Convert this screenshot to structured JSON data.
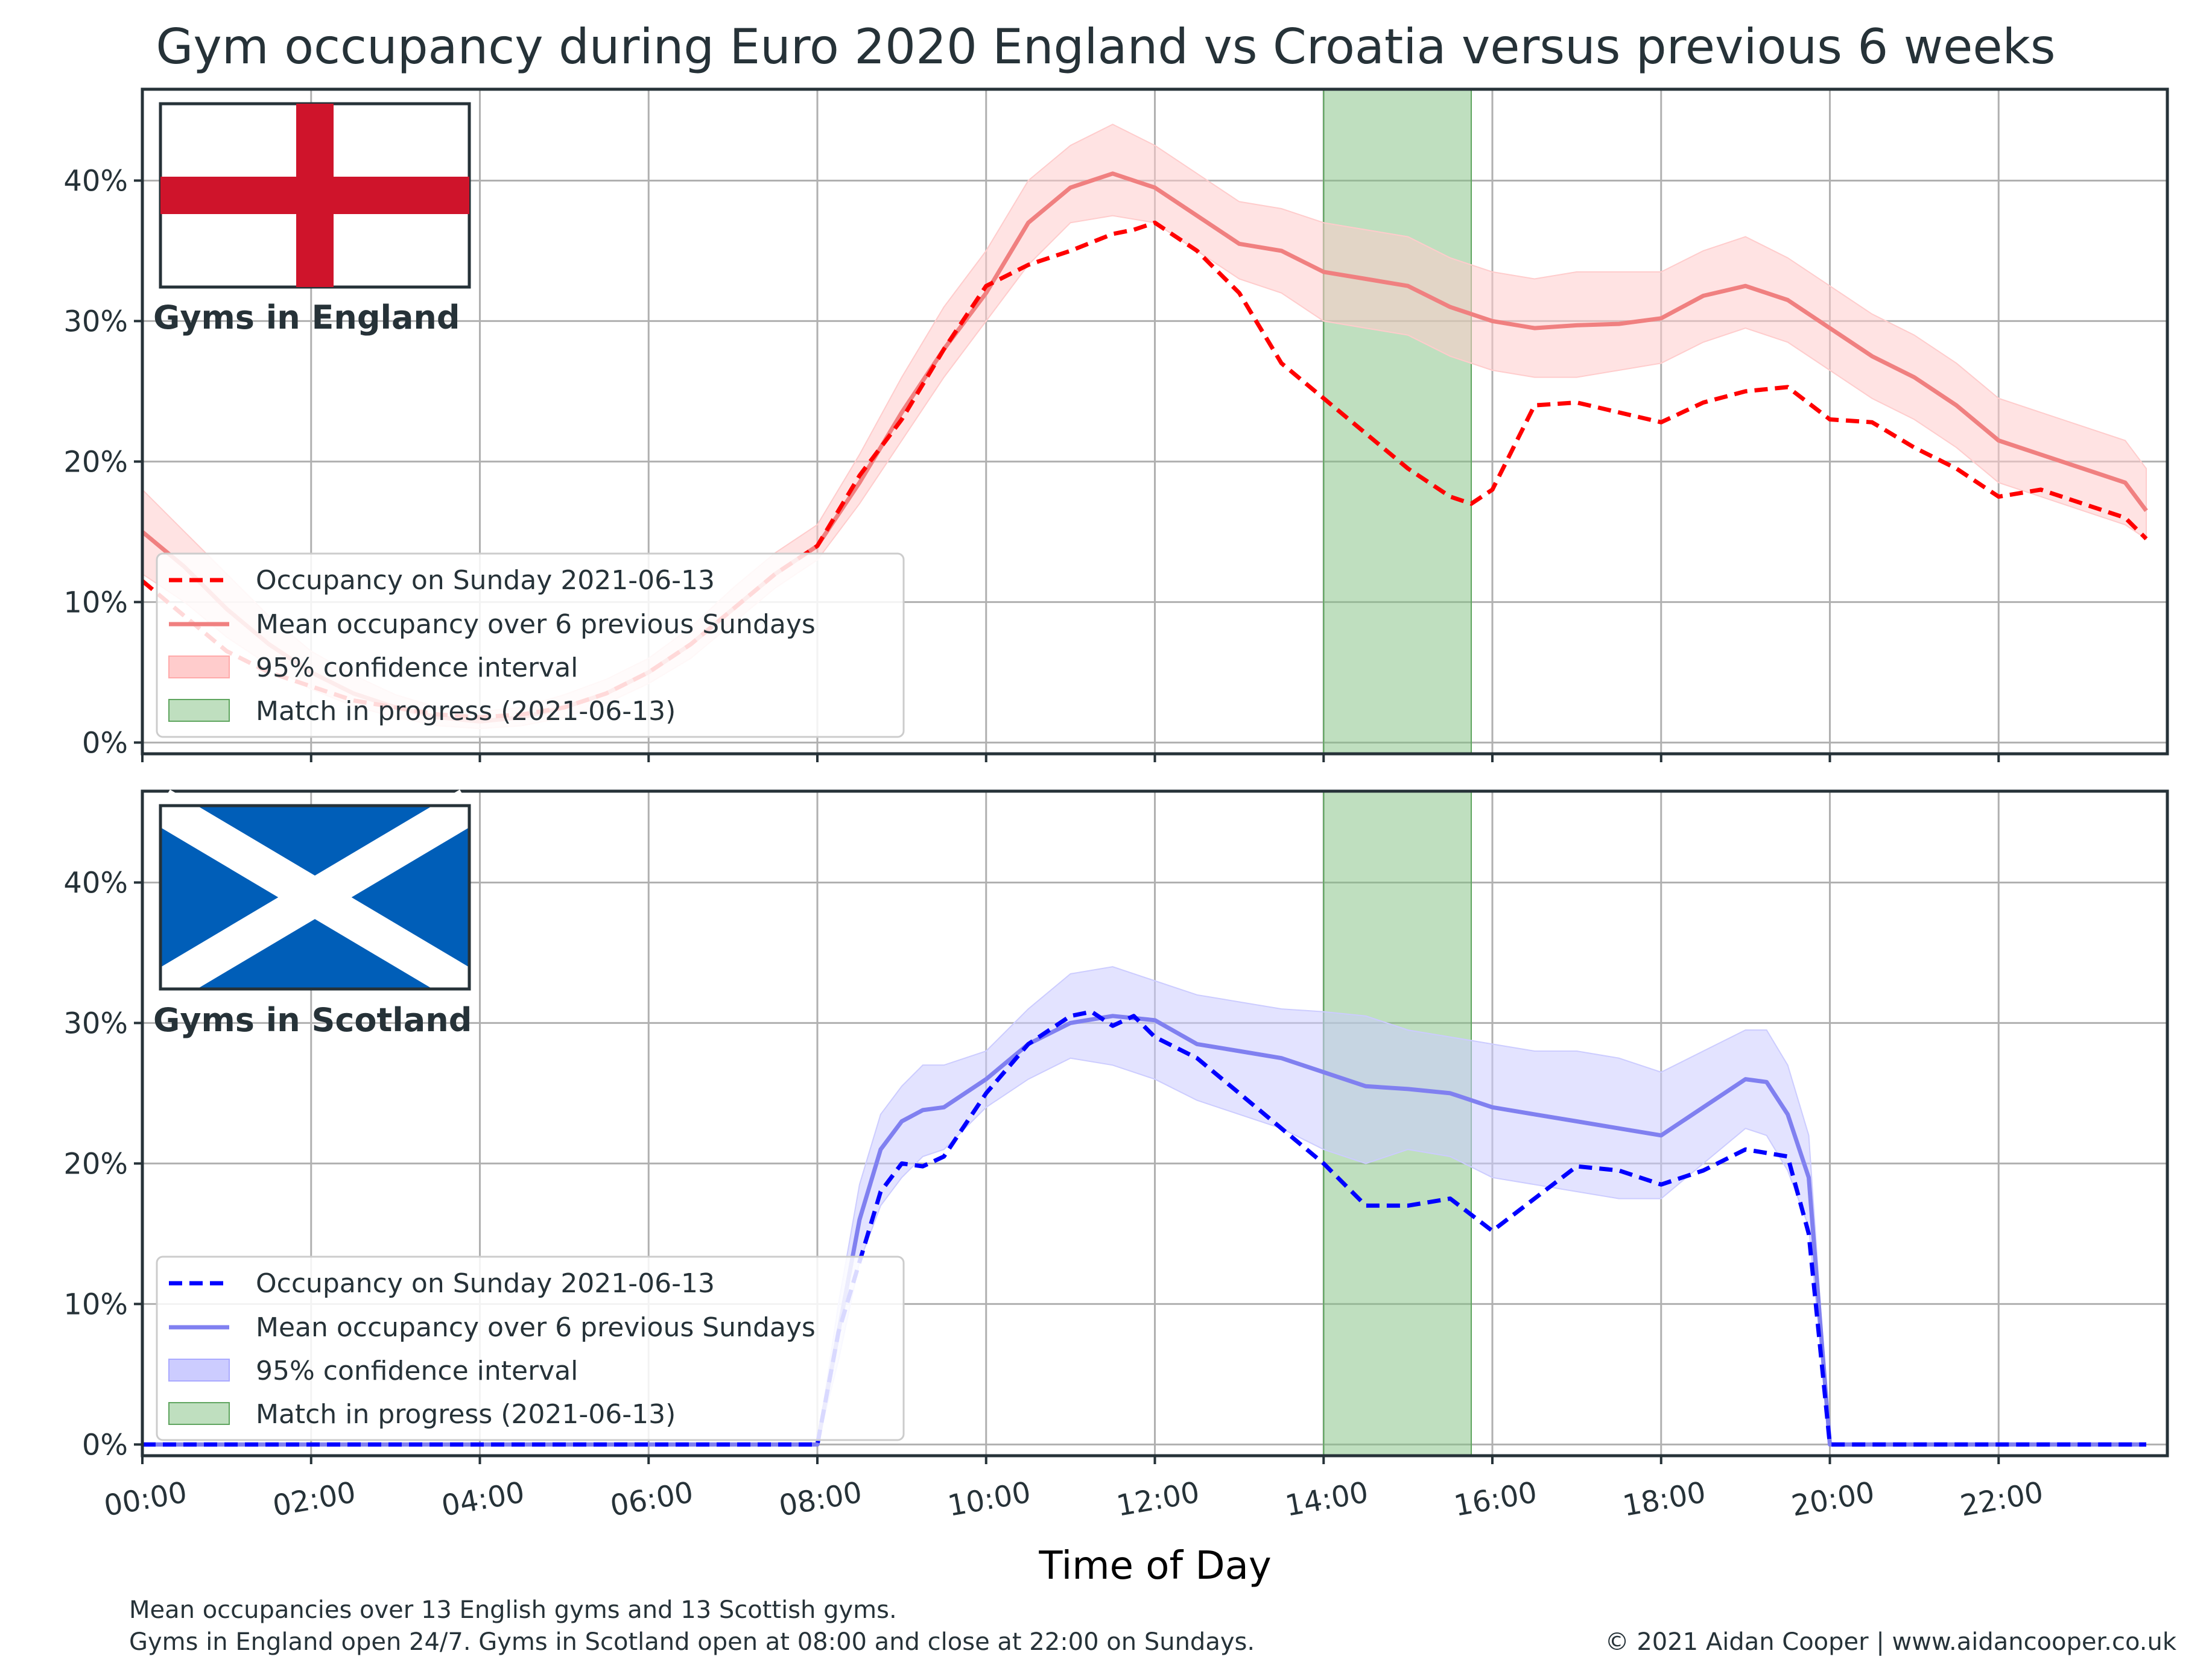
{
  "title": "Gym occupancy during Euro 2020 England vs Croatia versus previous 6 weeks",
  "xlabel": "Time of Day",
  "footnote_line1": "Mean occupancies over 13 English gyms and 13 Scottish gyms.",
  "footnote_line2": "Gyms in England open 24/7. Gyms in Scotland open at 08:00 and close at 22:00 on Sundays.",
  "credit": "© 2021 Aidan Cooper | www.aidancooper.co.uk",
  "colors": {
    "england_actual": "#ff0000",
    "england_mean": "#f08080",
    "england_ci": "#ffcccc",
    "scotland_actual": "#0000ff",
    "scotland_mean": "#8080f0",
    "scotland_ci": "#ccccff",
    "match": "#7fbf7f",
    "axes": "#263238",
    "grid": "#b0b0b0",
    "flag_red": "#cf142b",
    "flag_blue": "#005eb8",
    "flag_white": "#ffffff"
  },
  "chart_data": [
    {
      "type": "line",
      "panel_label": "Gyms in England",
      "flag": "england-flag",
      "x_unit": "hours",
      "x_ticks": [
        0,
        2,
        4,
        6,
        8,
        10,
        12,
        14,
        16,
        18,
        20,
        22
      ],
      "x_tick_labels": [
        "00:00",
        "02:00",
        "04:00",
        "06:00",
        "08:00",
        "10:00",
        "12:00",
        "14:00",
        "16:00",
        "18:00",
        "20:00",
        "22:00"
      ],
      "xlim": [
        0,
        24
      ],
      "ylim": [
        -0.8,
        46.5
      ],
      "y_ticks": [
        0,
        10,
        20,
        30,
        40
      ],
      "y_tick_labels": [
        "0%",
        "10%",
        "20%",
        "30%",
        "40%"
      ],
      "grid": true,
      "legend_position": "lower-left",
      "match_span": {
        "start": 14.0,
        "end": 15.75,
        "label": "Match in progress (2021-06-13)"
      },
      "series": [
        {
          "name": "Occupancy on Sunday 2021-06-13",
          "style": "dashed",
          "x": [
            0,
            0.5,
            1,
            1.5,
            2,
            2.5,
            3,
            3.5,
            4,
            4.5,
            5,
            5.5,
            6,
            6.5,
            7,
            7.5,
            8,
            8.5,
            9,
            9.5,
            10,
            10.5,
            11,
            11.5,
            11.75,
            12,
            12.5,
            13,
            13.5,
            14,
            14.5,
            15,
            15.5,
            15.75,
            16,
            16.5,
            17,
            17.5,
            18,
            18.5,
            19,
            19.5,
            20,
            20.5,
            21,
            21.5,
            22,
            22.5,
            23,
            23.5,
            23.75
          ],
          "y": [
            11.5,
            9,
            6.5,
            5,
            4,
            3,
            2.5,
            2,
            1.8,
            2,
            2.5,
            3.5,
            5,
            7,
            9.5,
            12,
            14,
            19,
            23,
            28,
            32.5,
            34,
            35,
            36.2,
            36.5,
            37,
            35,
            32,
            27,
            24.5,
            22,
            19.5,
            17.5,
            17,
            18,
            24,
            24.2,
            23.5,
            22.8,
            24.2,
            25,
            25.3,
            23,
            22.8,
            21,
            19.5,
            17.5,
            18,
            17,
            16,
            14.5
          ]
        },
        {
          "name": "Mean occupancy over 6 previous Sundays",
          "style": "solid",
          "x": [
            0,
            0.5,
            1,
            1.5,
            2,
            2.5,
            3,
            3.5,
            4,
            4.5,
            5,
            5.5,
            6,
            6.5,
            7,
            7.5,
            8,
            8.5,
            9,
            9.5,
            10,
            10.5,
            11,
            11.5,
            12,
            12.5,
            13,
            13.5,
            14,
            14.5,
            15,
            15.5,
            16,
            16.5,
            17,
            17.5,
            18,
            18.5,
            19,
            19.5,
            20,
            20.5,
            21,
            21.5,
            22,
            22.5,
            23,
            23.5,
            23.75
          ],
          "y": [
            15,
            12.5,
            9.5,
            7,
            5,
            3.5,
            2.5,
            1.8,
            1.5,
            1.8,
            2.5,
            3.5,
            5,
            7,
            9.5,
            12,
            14,
            18.5,
            23.5,
            28,
            32,
            37,
            39.5,
            40.5,
            39.5,
            37.5,
            35.5,
            35,
            33.5,
            33,
            32.5,
            31,
            30,
            29.5,
            29.7,
            29.8,
            30.2,
            31.8,
            32.5,
            31.5,
            29.5,
            27.5,
            26,
            24,
            21.5,
            20.5,
            19.5,
            18.5,
            16.5
          ]
        },
        {
          "name": "95% confidence interval",
          "style": "band",
          "x": [
            0,
            0.5,
            1,
            1.5,
            2,
            2.5,
            3,
            3.5,
            4,
            4.5,
            5,
            5.5,
            6,
            6.5,
            7,
            7.5,
            8,
            8.5,
            9,
            9.5,
            10,
            10.5,
            11,
            11.5,
            12,
            12.5,
            13,
            13.5,
            14,
            14.5,
            15,
            15.5,
            16,
            16.5,
            17,
            17.5,
            18,
            18.5,
            19,
            19.5,
            20,
            20.5,
            21,
            21.5,
            22,
            22.5,
            23,
            23.5,
            23.75
          ],
          "lower": [
            12,
            10,
            7.5,
            5.5,
            3.8,
            2.6,
            1.8,
            1.2,
            1.0,
            1.2,
            1.8,
            2.8,
            4.2,
            6,
            8.5,
            11,
            13,
            17,
            21.5,
            26,
            30,
            34,
            37,
            37.5,
            37,
            35,
            33,
            32,
            30,
            29.5,
            29,
            27.5,
            26.5,
            26,
            26,
            26.5,
            27,
            28.5,
            29.5,
            28.5,
            26.5,
            24.5,
            23,
            21,
            18.5,
            17.5,
            16.5,
            15.5,
            14.5
          ],
          "upper": [
            18,
            15,
            12,
            9,
            6.5,
            4.8,
            3.4,
            2.5,
            2.2,
            2.5,
            3.4,
            4.5,
            6,
            8.2,
            11,
            13.5,
            15.5,
            20.5,
            26,
            31,
            35,
            40,
            42.5,
            44,
            42.5,
            40.5,
            38.5,
            38,
            37,
            36.5,
            36,
            34.5,
            33.5,
            33,
            33.5,
            33.5,
            33.5,
            35,
            36,
            34.5,
            32.5,
            30.5,
            29,
            27,
            24.5,
            23.5,
            22.5,
            21.5,
            19.5
          ]
        }
      ]
    },
    {
      "type": "line",
      "panel_label": "Gyms in Scotland",
      "flag": "scotland-flag",
      "x_unit": "hours",
      "x_ticks": [
        0,
        2,
        4,
        6,
        8,
        10,
        12,
        14,
        16,
        18,
        20,
        22
      ],
      "x_tick_labels": [
        "00:00",
        "02:00",
        "04:00",
        "06:00",
        "08:00",
        "10:00",
        "12:00",
        "14:00",
        "16:00",
        "18:00",
        "20:00",
        "22:00"
      ],
      "xlim": [
        0,
        24
      ],
      "ylim": [
        -0.8,
        46.5
      ],
      "y_ticks": [
        0,
        10,
        20,
        30,
        40
      ],
      "y_tick_labels": [
        "0%",
        "10%",
        "20%",
        "30%",
        "40%"
      ],
      "grid": true,
      "legend_position": "lower-left",
      "match_span": {
        "start": 14.0,
        "end": 15.75,
        "label": "Match in progress (2021-06-13)"
      },
      "series": [
        {
          "name": "Occupancy on Sunday 2021-06-13",
          "style": "dashed",
          "x": [
            0,
            8,
            8.25,
            8.5,
            8.75,
            9,
            9.25,
            9.5,
            10,
            10.5,
            11,
            11.25,
            11.5,
            11.75,
            12,
            12.5,
            13,
            13.5,
            14,
            14.5,
            15,
            15.5,
            16,
            16.5,
            17,
            17.5,
            18,
            18.5,
            19,
            19.5,
            19.75,
            20,
            22,
            23.75
          ],
          "y": [
            0,
            0,
            8,
            13,
            18,
            20,
            19.8,
            20.5,
            25,
            28.5,
            30.5,
            30.8,
            29.8,
            30.5,
            29,
            27.5,
            25,
            22.5,
            20,
            17,
            17,
            17.5,
            15.2,
            17.5,
            19.8,
            19.5,
            18.5,
            19.5,
            21,
            20.5,
            15,
            0,
            0,
            0
          ]
        },
        {
          "name": "Mean occupancy over 6 previous Sundays",
          "style": "solid",
          "x": [
            0,
            8,
            8.25,
            8.5,
            8.75,
            9,
            9.25,
            9.5,
            10,
            10.5,
            11,
            11.5,
            12,
            12.5,
            13,
            13.5,
            14,
            14.5,
            15,
            15.5,
            16,
            16.5,
            17,
            17.5,
            18,
            18.5,
            19,
            19.25,
            19.5,
            19.75,
            20,
            22,
            23.75
          ],
          "y": [
            0,
            0,
            8,
            16,
            21,
            23,
            23.8,
            24,
            26,
            28.5,
            30,
            30.5,
            30.2,
            28.5,
            28,
            27.5,
            26.5,
            25.5,
            25.3,
            25,
            24,
            23.5,
            23,
            22.5,
            22,
            24,
            26,
            25.8,
            23.5,
            19,
            0,
            0,
            0
          ]
        },
        {
          "name": "95% confidence interval",
          "style": "band",
          "x": [
            8,
            8.25,
            8.5,
            8.75,
            9,
            9.25,
            9.5,
            10,
            10.5,
            11,
            11.5,
            12,
            12.5,
            13,
            13.5,
            14,
            14.5,
            15,
            15.5,
            16,
            16.5,
            17,
            17.5,
            18,
            18.5,
            19,
            19.25,
            19.5,
            19.75,
            20
          ],
          "lower": [
            0,
            6,
            13,
            17,
            19,
            20.5,
            21,
            24,
            26,
            27.5,
            27,
            26,
            24.5,
            23.5,
            22.5,
            21,
            20,
            21,
            20.5,
            19,
            18.5,
            18,
            17.5,
            17.5,
            20,
            22.5,
            22,
            19.5,
            15.5,
            0
          ],
          "upper": [
            0,
            10,
            18.5,
            23.5,
            25.5,
            27,
            27,
            28,
            31,
            33.5,
            34,
            33,
            32,
            31.5,
            31,
            30.8,
            30.5,
            29.5,
            29,
            28.5,
            28,
            28,
            27.5,
            26.5,
            28,
            29.5,
            29.5,
            27,
            22,
            0
          ]
        }
      ]
    }
  ]
}
